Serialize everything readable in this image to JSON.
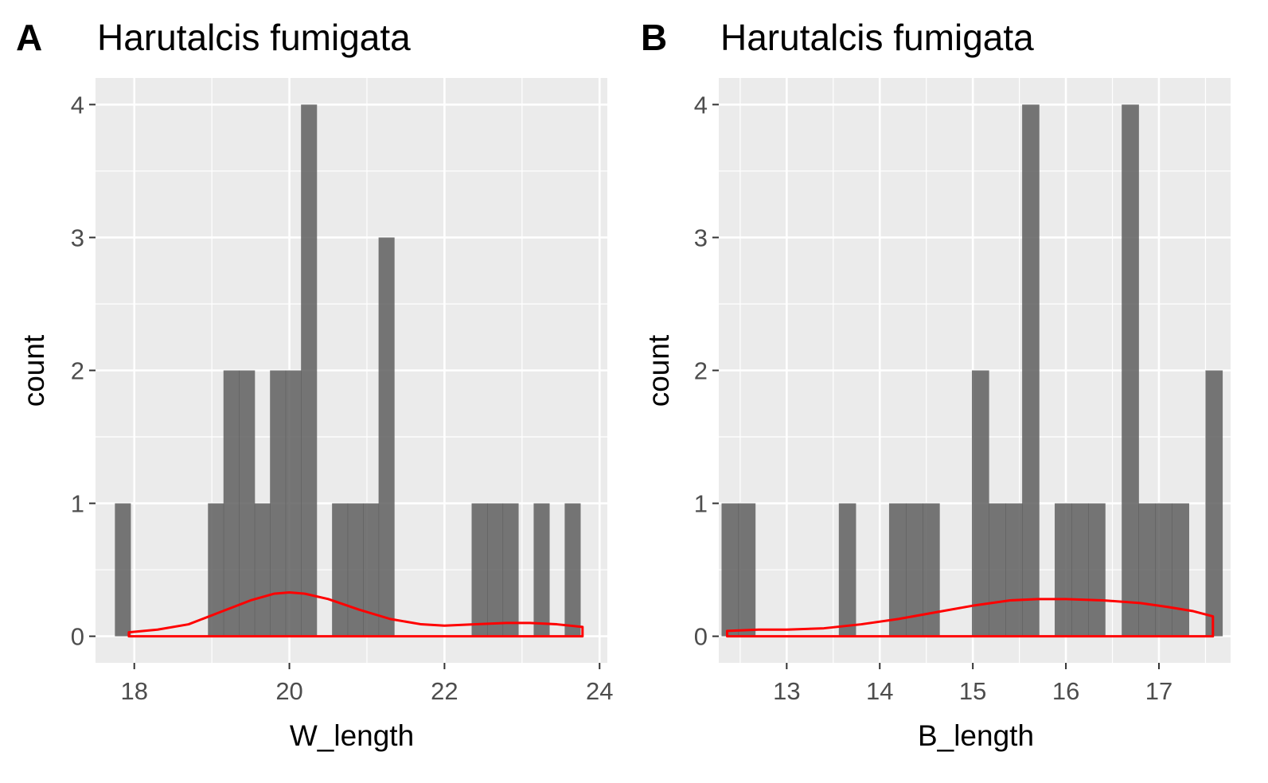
{
  "chart_data": [
    {
      "type": "bar",
      "tag": "A",
      "title": "Harutalcis fumigata",
      "xlabel": "W_length",
      "ylabel": "count",
      "xlim": [
        17.5,
        24.1
      ],
      "ylim": [
        -0.2,
        4.2
      ],
      "xticks": [
        18,
        20,
        22,
        24
      ],
      "yticks": [
        0,
        1,
        2,
        3,
        4
      ],
      "bin_width": 0.2,
      "bars": [
        {
          "x0": 17.75,
          "x1": 17.95,
          "count": 1
        },
        {
          "x0": 18.95,
          "x1": 19.15,
          "count": 1
        },
        {
          "x0": 19.15,
          "x1": 19.35,
          "count": 2
        },
        {
          "x0": 19.35,
          "x1": 19.55,
          "count": 2
        },
        {
          "x0": 19.55,
          "x1": 19.75,
          "count": 1
        },
        {
          "x0": 19.75,
          "x1": 19.95,
          "count": 2
        },
        {
          "x0": 19.95,
          "x1": 20.15,
          "count": 2
        },
        {
          "x0": 20.15,
          "x1": 20.35,
          "count": 4
        },
        {
          "x0": 20.55,
          "x1": 20.75,
          "count": 1
        },
        {
          "x0": 20.75,
          "x1": 20.95,
          "count": 1
        },
        {
          "x0": 20.95,
          "x1": 21.15,
          "count": 1
        },
        {
          "x0": 21.15,
          "x1": 21.35,
          "count": 3
        },
        {
          "x0": 22.35,
          "x1": 22.55,
          "count": 1
        },
        {
          "x0": 22.55,
          "x1": 22.75,
          "count": 1
        },
        {
          "x0": 22.75,
          "x1": 22.95,
          "count": 1
        },
        {
          "x0": 23.15,
          "x1": 23.35,
          "count": 1
        },
        {
          "x0": 23.55,
          "x1": 23.75,
          "count": 1
        }
      ],
      "density": {
        "x": [
          17.93,
          18.3,
          18.7,
          19.1,
          19.5,
          19.8,
          20.0,
          20.2,
          20.5,
          20.9,
          21.3,
          21.7,
          22.0,
          22.4,
          22.8,
          23.1,
          23.45,
          23.78
        ],
        "y": [
          0.03,
          0.05,
          0.09,
          0.18,
          0.27,
          0.32,
          0.33,
          0.32,
          0.28,
          0.2,
          0.13,
          0.09,
          0.08,
          0.09,
          0.1,
          0.1,
          0.09,
          0.07
        ]
      }
    },
    {
      "type": "bar",
      "tag": "B",
      "title": "Harutalcis fumigata",
      "xlabel": "B_length",
      "ylabel": "count",
      "xlim": [
        12.27,
        17.77
      ],
      "ylim": [
        -0.2,
        4.2
      ],
      "xticks": [
        13,
        14,
        15,
        16,
        17
      ],
      "yticks": [
        0,
        1,
        2,
        3,
        4
      ],
      "bin_width": 0.18,
      "bars": [
        {
          "x0": 12.3,
          "x1": 12.48,
          "count": 1
        },
        {
          "x0": 12.48,
          "x1": 12.66,
          "count": 1
        },
        {
          "x0": 13.56,
          "x1": 13.74,
          "count": 1
        },
        {
          "x0": 14.1,
          "x1": 14.28,
          "count": 1
        },
        {
          "x0": 14.28,
          "x1": 14.46,
          "count": 1
        },
        {
          "x0": 14.46,
          "x1": 14.64,
          "count": 1
        },
        {
          "x0": 14.99,
          "x1": 15.17,
          "count": 2
        },
        {
          "x0": 15.17,
          "x1": 15.35,
          "count": 1
        },
        {
          "x0": 15.35,
          "x1": 15.53,
          "count": 1
        },
        {
          "x0": 15.53,
          "x1": 15.71,
          "count": 4
        },
        {
          "x0": 15.88,
          "x1": 16.06,
          "count": 1
        },
        {
          "x0": 16.06,
          "x1": 16.24,
          "count": 1
        },
        {
          "x0": 16.24,
          "x1": 16.42,
          "count": 1
        },
        {
          "x0": 16.6,
          "x1": 16.78,
          "count": 4
        },
        {
          "x0": 16.78,
          "x1": 16.96,
          "count": 1
        },
        {
          "x0": 16.96,
          "x1": 17.14,
          "count": 1
        },
        {
          "x0": 17.14,
          "x1": 17.32,
          "count": 1
        },
        {
          "x0": 17.5,
          "x1": 17.68,
          "count": 2
        }
      ],
      "density": {
        "x": [
          12.36,
          12.7,
          13.0,
          13.4,
          13.8,
          14.2,
          14.6,
          15.0,
          15.4,
          15.7,
          16.0,
          16.4,
          16.8,
          17.1,
          17.36,
          17.58
        ],
        "y": [
          0.04,
          0.05,
          0.05,
          0.06,
          0.09,
          0.13,
          0.18,
          0.23,
          0.27,
          0.28,
          0.28,
          0.27,
          0.25,
          0.22,
          0.19,
          0.15
        ]
      }
    }
  ]
}
